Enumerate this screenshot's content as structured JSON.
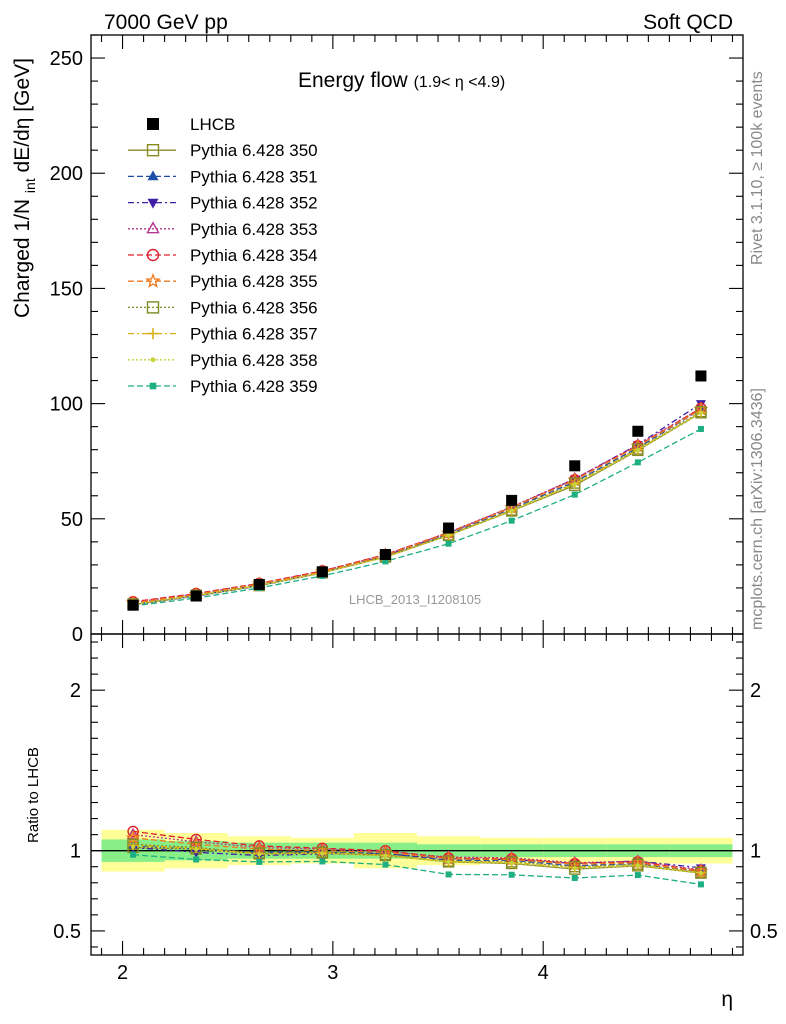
{
  "header": {
    "left": "7000 GeV pp",
    "right": "Soft QCD"
  },
  "side_labels": {
    "rivet": "Rivet 3.1.10, ≥ 100k events",
    "mcplots": "mcplots.cern.ch [arXiv:1306.3436]"
  },
  "chart_data": [
    {
      "type": "scatter",
      "title_main": "Energy flow",
      "title_sub": "(1.9< η <4.9)",
      "watermark": "LHCB_2013_I1208105",
      "ylabel": "Charged 1/N",
      "ylabel_sub": "int",
      "ylabel_tail": " dE/dη [GeV]",
      "xlabel": "η",
      "xlim": [
        1.85,
        4.95
      ],
      "ylim": [
        0,
        260
      ],
      "yticks": [
        0,
        50,
        100,
        150,
        200,
        250
      ],
      "xticks": [
        2,
        3,
        4
      ],
      "grid": false,
      "legend_position": "top-left",
      "x": [
        2.05,
        2.35,
        2.65,
        2.95,
        3.25,
        3.55,
        3.85,
        4.15,
        4.45,
        4.75
      ],
      "data": {
        "name": "LHCB",
        "values": [
          12.5,
          16.5,
          21.5,
          27.0,
          34.5,
          46.0,
          58.0,
          73.0,
          88.0,
          112.0
        ],
        "color": "#000000"
      },
      "series": [
        {
          "name": "Pythia 6.428 350",
          "color": "#8a8a24",
          "marker": "square-open",
          "dash": "solid",
          "values": [
            12.7,
            16.6,
            21.0,
            26.6,
            33.4,
            42.8,
            53.4,
            64.5,
            79.7,
            96.0
          ]
        },
        {
          "name": "Pythia 6.428 351",
          "color": "#1f4fa8",
          "marker": "triangle-up",
          "dash": "6,3",
          "values": [
            12.8,
            16.6,
            21.3,
            26.8,
            34.0,
            43.3,
            54.4,
            66.0,
            80.8,
            97.5
          ]
        },
        {
          "name": "Pythia 6.428 352",
          "color": "#3f1fa5",
          "marker": "triangle-down",
          "dash": "6,3,2,3",
          "values": [
            12.8,
            16.4,
            20.9,
            26.5,
            33.9,
            43.8,
            55.0,
            67.3,
            82.2,
            100.0
          ]
        },
        {
          "name": "Pythia 6.428 353",
          "color": "#b4378f",
          "marker": "triangle-open",
          "dash": "2,2",
          "values": [
            13.7,
            17.4,
            21.9,
            27.3,
            34.4,
            44.1,
            55.2,
            67.4,
            82.1,
            98.0
          ]
        },
        {
          "name": "Pythia 6.428 354",
          "color": "#e0202c",
          "marker": "circle-open",
          "dash": "6,3",
          "values": [
            14.0,
            17.6,
            22.0,
            27.4,
            34.5,
            44.0,
            55.0,
            67.0,
            81.7,
            98.0
          ]
        },
        {
          "name": "Pythia 6.428 355",
          "color": "#f07b20",
          "marker": "star-open",
          "dash": "6,3",
          "values": [
            13.5,
            17.2,
            21.7,
            27.0,
            34.2,
            43.8,
            54.8,
            66.8,
            81.5,
            97.5
          ]
        },
        {
          "name": "Pythia 6.428 356",
          "color": "#7f8a24",
          "marker": "square-open",
          "dash": "2,2",
          "values": [
            13.0,
            16.8,
            21.2,
            26.7,
            33.6,
            43.0,
            53.8,
            65.5,
            80.3,
            96.5
          ]
        },
        {
          "name": "Pythia 6.428 357",
          "color": "#d8b010",
          "marker": "cross",
          "dash": "6,3,2,3",
          "values": [
            12.9,
            16.7,
            21.1,
            26.6,
            33.5,
            42.9,
            53.6,
            65.2,
            80.0,
            96.2
          ]
        },
        {
          "name": "Pythia 6.428 358",
          "color": "#c8d23a",
          "marker": "dot",
          "dash": "2,2",
          "values": [
            12.8,
            16.6,
            21.0,
            26.5,
            33.4,
            42.8,
            53.4,
            65.0,
            79.8,
            96.0
          ]
        },
        {
          "name": "Pythia 6.428 359",
          "color": "#1dae82",
          "marker": "square-small",
          "dash": "6,3",
          "values": [
            12.2,
            15.6,
            20.0,
            25.2,
            31.5,
            39.2,
            49.2,
            60.5,
            74.5,
            89.0
          ]
        }
      ]
    },
    {
      "type": "scatter",
      "ylabel": "Ratio to LHCB",
      "xlabel": "η",
      "xlim": [
        1.85,
        4.95
      ],
      "ylim": [
        0.35,
        2.35
      ],
      "yticks": [
        0.5,
        1,
        2
      ],
      "ytick_labels": [
        "0.5",
        "1",
        "2"
      ],
      "xticks": [
        2,
        3,
        4
      ],
      "xtick_labels": [
        "2",
        "3",
        "4"
      ],
      "x": [
        2.05,
        2.35,
        2.65,
        2.95,
        3.25,
        3.55,
        3.85,
        4.15,
        4.45,
        4.75
      ],
      "bin_edges": [
        1.9,
        2.2,
        2.5,
        2.8,
        3.1,
        3.4,
        3.7,
        4.0,
        4.3,
        4.6,
        4.9
      ],
      "band_stat": [
        0.07,
        0.06,
        0.05,
        0.05,
        0.05,
        0.04,
        0.04,
        0.04,
        0.04,
        0.04
      ],
      "band_total": [
        0.13,
        0.11,
        0.09,
        0.08,
        0.11,
        0.09,
        0.08,
        0.08,
        0.08,
        0.08
      ],
      "series": [
        {
          "name": "Pythia 6.428 350",
          "values": [
            1.02,
            1.01,
            0.98,
            0.985,
            0.97,
            0.93,
            0.92,
            0.885,
            0.905,
            0.86
          ]
        },
        {
          "name": "Pythia 6.428 351",
          "values": [
            1.03,
            1.01,
            0.99,
            0.99,
            0.985,
            0.94,
            0.94,
            0.905,
            0.92,
            0.87
          ]
        },
        {
          "name": "Pythia 6.428 352",
          "values": [
            1.02,
            0.99,
            0.97,
            0.98,
            0.98,
            0.95,
            0.945,
            0.92,
            0.935,
            0.893
          ]
        },
        {
          "name": "Pythia 6.428 353",
          "values": [
            1.1,
            1.055,
            1.02,
            1.01,
            0.995,
            0.96,
            0.955,
            0.925,
            0.935,
            0.88
          ]
        },
        {
          "name": "Pythia 6.428 354",
          "values": [
            1.12,
            1.07,
            1.03,
            1.015,
            1.0,
            0.955,
            0.95,
            0.92,
            0.93,
            0.875
          ]
        },
        {
          "name": "Pythia 6.428 355",
          "values": [
            1.08,
            1.04,
            1.01,
            1.0,
            0.99,
            0.95,
            0.945,
            0.915,
            0.925,
            0.87
          ]
        },
        {
          "name": "Pythia 6.428 356",
          "values": [
            1.04,
            1.02,
            0.985,
            0.99,
            0.975,
            0.935,
            0.93,
            0.9,
            0.915,
            0.865
          ]
        },
        {
          "name": "Pythia 6.428 357",
          "values": [
            1.035,
            1.015,
            0.982,
            0.988,
            0.972,
            0.932,
            0.925,
            0.895,
            0.91,
            0.862
          ]
        },
        {
          "name": "Pythia 6.428 358",
          "values": [
            1.025,
            1.01,
            0.978,
            0.982,
            0.968,
            0.93,
            0.922,
            0.89,
            0.907,
            0.86
          ]
        },
        {
          "name": "Pythia 6.428 359",
          "values": [
            0.975,
            0.945,
            0.93,
            0.933,
            0.913,
            0.852,
            0.85,
            0.83,
            0.848,
            0.79
          ]
        }
      ]
    }
  ]
}
